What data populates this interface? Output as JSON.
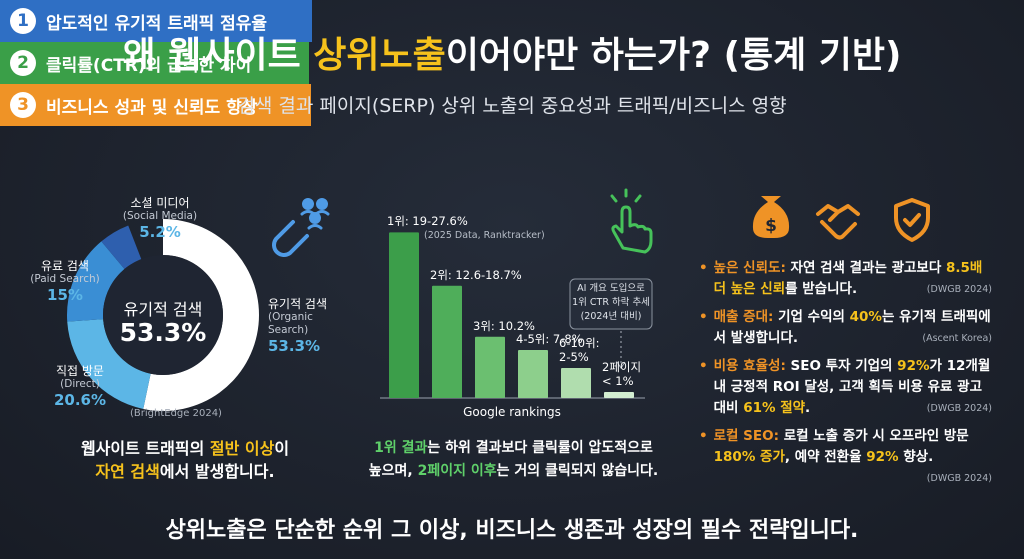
{
  "title": [
    {
      "text": "왜 웹사이트 "
    },
    {
      "text": "상위노출",
      "hl": true
    },
    {
      "text": "이어야만 하는가? (통계 기반)"
    }
  ],
  "title_highlight_color": "#f6c21c",
  "subtitle": "검색 결과 페이지(SERP) 상위 노출의 중요성과 트래픽/비즈니스 영향",
  "panels": [
    {
      "number": 1,
      "heading": "압도적인 유기적 트래픽 점유율",
      "color": "#2f6fc4",
      "highlight_color": "#f6c21c",
      "source": "(BrightEdge 2024)",
      "caption": [
        [
          {
            "text": "웹사이트 트래픽의 "
          },
          {
            "text": "절반 이상",
            "hl": true
          },
          {
            "text": "이"
          }
        ],
        [
          {
            "text": "자연 검색",
            "hl": true
          },
          {
            "text": "에서 발생합니다."
          }
        ]
      ]
    },
    {
      "number": 2,
      "heading": "클릭률(CTR)의 급격한 차이",
      "color": "#3a9f48",
      "highlight_color": "#5fd06a",
      "caption": [
        [
          {
            "text": "1위 결과",
            "hl": true
          },
          {
            "text": "는 하위 결과보다 클릭률이 압도적으로"
          }
        ],
        [
          {
            "text": "높으며, "
          },
          {
            "text": "2페이지 이후",
            "hl": true
          },
          {
            "text": "는 거의 클릭되지 않습니다."
          }
        ]
      ]
    },
    {
      "number": 3,
      "heading": "비즈니스 성과 및 신뢰도 향상",
      "color": "#ef9326",
      "highlight_color": "#f6c21c",
      "bullets": [
        {
          "label": "높은 신뢰도:",
          "segments": [
            {
              "text": " 자연 검색 결과는 광고보다 "
            },
            {
              "text": "8.5배 더 높은 신뢰",
              "hl": true
            },
            {
              "text": "를 받습니다."
            }
          ],
          "source": "(DWGB 2024)"
        },
        {
          "label": "매출 증대:",
          "segments": [
            {
              "text": " 기업 수익의 "
            },
            {
              "text": "40%",
              "hl": true
            },
            {
              "text": "는 유기적 트래픽에서 발생합니다."
            }
          ],
          "source": "(Ascent Korea)"
        },
        {
          "label": "비용 효율성:",
          "segments": [
            {
              "text": " SEO 투자 기업의 "
            },
            {
              "text": "92%",
              "hl": true
            },
            {
              "text": "가 12개월 내 긍정적 ROI 달성, 고객 획득 비용 유료 광고 대비 "
            },
            {
              "text": "61% 절약",
              "hl": true
            },
            {
              "text": "."
            }
          ],
          "source": "(DWGB 2024)"
        },
        {
          "label": "로컬 SEO:",
          "segments": [
            {
              "text": " 로컬 노출 증가 시 오프라인 방문 "
            },
            {
              "text": "180% 증가",
              "hl": true
            },
            {
              "text": ", 예약 전환율 "
            },
            {
              "text": "92%",
              "hl": true
            },
            {
              "text": " 향상."
            }
          ],
          "source": "(DWGB 2024)"
        }
      ]
    }
  ],
  "chart_data": [
    {
      "type": "pie",
      "donut": true,
      "categories": [
        "유기적 검색",
        "직접 방문",
        "유료 검색",
        "소셜 미디어"
      ],
      "categories_en": [
        "(Organic Search)",
        "(Direct)",
        "(Paid Search)",
        "(Social Media)"
      ],
      "values": [
        53.3,
        20.6,
        15,
        5.2
      ],
      "value_labels": [
        "53.3%",
        "20.6%",
        "15%",
        "5.2%"
      ],
      "colors": [
        "#ffffff",
        "#5cb6e6",
        "#3a8ed4",
        "#2e5fae"
      ]
    },
    {
      "type": "bar",
      "categories": [
        "1위: 19-27.6%",
        "2위: 12.6-18.7%",
        "3위: 10.2%",
        "4-5위: 7-8%",
        "6-10위: 2-5%",
        "2페이지 < 1%"
      ],
      "values": [
        27.6,
        18.7,
        10.2,
        8,
        5,
        1
      ],
      "colors": [
        "#3c9e4a",
        "#4fae5a",
        "#6bbf70",
        "#8dcf8c",
        "#b0ddae",
        "#d3eed1"
      ],
      "ylim": [
        0,
        28
      ],
      "note": "(2025 Data, Ranktracker)",
      "annotation": [
        "AI 개요 도입으로",
        "1위 CTR 하락 추세",
        "(2024년 대비)"
      ],
      "xlabel": "Google rankings"
    }
  ],
  "footer": "상위노출은 단순한 순위 그 이상, 비즈니스 생존과 성장의 필수 전략입니다."
}
